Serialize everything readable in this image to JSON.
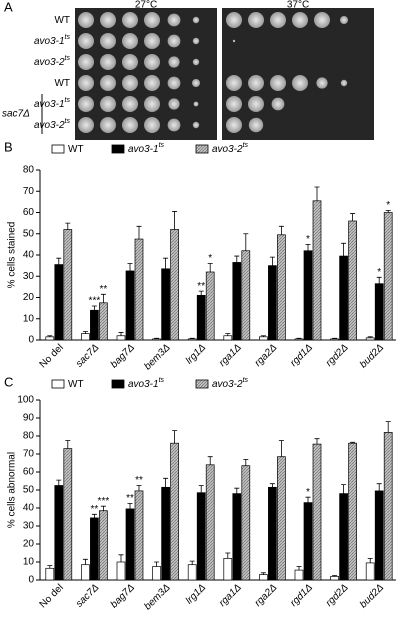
{
  "panel_a": {
    "letter": "A",
    "plates": [
      "27°C",
      "37°C"
    ],
    "rows": [
      {
        "name": "WT"
      },
      {
        "name": "avo3-1",
        "sup": "ts"
      },
      {
        "name": "avo3-2",
        "sup": "ts"
      },
      {
        "name": "WT"
      },
      {
        "name": "avo3-1",
        "sup": "ts"
      },
      {
        "name": "avo3-2",
        "sup": "ts"
      }
    ],
    "group_label": "sac7Δ"
  },
  "chart_data": [
    {
      "type": "bar",
      "panel": "B",
      "ylabel": "% cells stained",
      "ylim": [
        0,
        80
      ],
      "yticks": [
        0,
        10,
        20,
        30,
        40,
        50,
        60,
        70,
        80
      ],
      "categories": [
        "No del",
        "sac7Δ",
        "bag7Δ",
        "bem3Δ",
        "lrg1Δ",
        "rga1Δ",
        "rga2Δ",
        "rgd1Δ",
        "rgd2Δ",
        "bud2Δ"
      ],
      "series": [
        {
          "name": "WT",
          "color": "#ffffff",
          "values": [
            1.5,
            3,
            2,
            0.5,
            0.5,
            2,
            1.5,
            0.5,
            0.5,
            1
          ],
          "errors": [
            0.5,
            1,
            1.5,
            0.3,
            0.3,
            1,
            0.5,
            0.3,
            0.3,
            0.5
          ],
          "annotations": [
            null,
            null,
            null,
            null,
            null,
            null,
            null,
            null,
            null,
            null
          ]
        },
        {
          "name": "avo3-1",
          "sup": "ts",
          "color": "#000000",
          "values": [
            35.5,
            14,
            32.5,
            33.5,
            21,
            36.5,
            35,
            42,
            39.5,
            26.5
          ],
          "errors": [
            3,
            2,
            3.5,
            5,
            2,
            3,
            4,
            3,
            6,
            3
          ],
          "annotations": [
            null,
            "***",
            null,
            null,
            "**",
            null,
            null,
            "*",
            null,
            "*"
          ]
        },
        {
          "name": "avo3-2",
          "sup": "ts",
          "color": "#c4c4c4",
          "values": [
            52,
            17.5,
            47.5,
            52,
            32,
            42,
            49.5,
            65.5,
            56,
            60
          ],
          "errors": [
            3,
            4,
            6,
            8.5,
            4,
            8,
            4,
            6.5,
            3.5,
            1
          ],
          "annotations": [
            null,
            "**",
            null,
            null,
            "*",
            null,
            null,
            null,
            null,
            "*"
          ]
        }
      ]
    },
    {
      "type": "bar",
      "panel": "C",
      "ylabel": "% cells abnormal",
      "ylim": [
        0,
        100
      ],
      "yticks": [
        0,
        10,
        20,
        30,
        40,
        50,
        60,
        70,
        80,
        90,
        100
      ],
      "categories": [
        "No del",
        "sac7Δ",
        "bag7Δ",
        "bem3Δ",
        "lrg1Δ",
        "rga1Δ",
        "rga2Δ",
        "rgd1Δ",
        "rgd2Δ",
        "bud2Δ"
      ],
      "series": [
        {
          "name": "WT",
          "color": "#ffffff",
          "values": [
            6.5,
            8.5,
            10,
            7.5,
            8.5,
            12,
            3,
            5.5,
            2,
            9.5
          ],
          "errors": [
            1.5,
            3,
            4,
            2.5,
            2,
            3,
            1,
            2,
            0.5,
            2.5
          ],
          "annotations": [
            null,
            null,
            null,
            null,
            null,
            null,
            null,
            null,
            null,
            null
          ]
        },
        {
          "name": "avo3-1",
          "sup": "ts",
          "color": "#000000",
          "values": [
            52.5,
            34.5,
            39.5,
            51.5,
            48.5,
            48,
            51.5,
            43,
            48,
            49.5
          ],
          "errors": [
            3,
            2,
            3,
            5,
            4,
            3,
            2,
            3,
            5,
            4
          ],
          "annotations": [
            null,
            "**",
            "**",
            null,
            null,
            null,
            null,
            "*",
            null,
            null
          ]
        },
        {
          "name": "avo3-2",
          "sup": "ts",
          "color": "#c4c4c4",
          "values": [
            73,
            38.5,
            49.5,
            76,
            64,
            63.5,
            68.5,
            75.5,
            76,
            82
          ],
          "errors": [
            4.5,
            2.5,
            3,
            7,
            4.5,
            3.5,
            9,
            3,
            0.5,
            6
          ],
          "annotations": [
            null,
            "***",
            "**",
            null,
            null,
            null,
            null,
            null,
            null,
            null
          ]
        }
      ]
    }
  ]
}
